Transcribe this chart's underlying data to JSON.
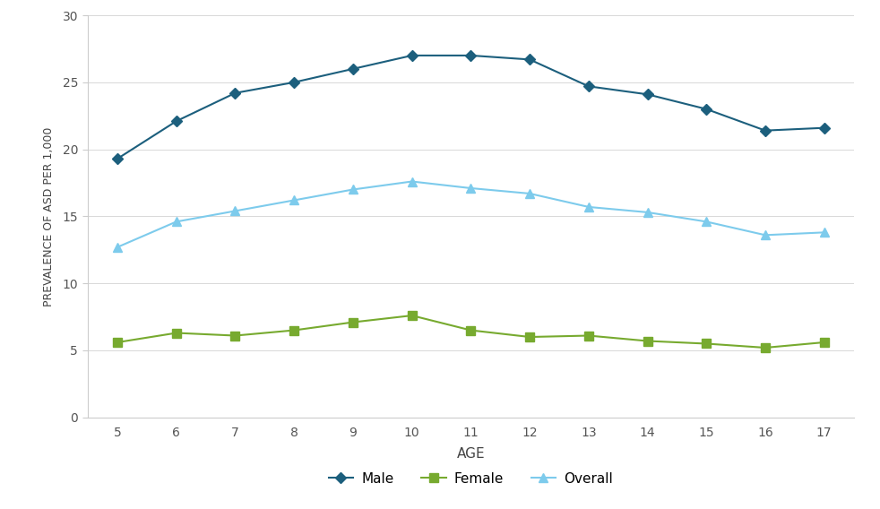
{
  "ages": [
    5,
    6,
    7,
    8,
    9,
    10,
    11,
    12,
    13,
    14,
    15,
    16,
    17
  ],
  "male": [
    19.3,
    22.1,
    24.2,
    25.0,
    26.0,
    27.0,
    27.0,
    26.7,
    24.7,
    24.1,
    23.0,
    21.4,
    21.6
  ],
  "female": [
    5.6,
    6.3,
    6.1,
    6.5,
    7.1,
    7.6,
    6.5,
    6.0,
    6.1,
    5.7,
    5.5,
    5.2,
    5.6
  ],
  "overall": [
    12.7,
    14.6,
    15.4,
    16.2,
    17.0,
    17.6,
    17.1,
    16.7,
    15.7,
    15.3,
    14.6,
    13.6,
    13.8
  ],
  "male_color": "#1c5f7d",
  "female_color": "#77aa2f",
  "overall_color": "#7dcbec",
  "xlabel": "AGE",
  "ylabel": "PREVALENCE OF ASD PER 1,000",
  "ylim": [
    0,
    30
  ],
  "yticks": [
    0,
    5,
    10,
    15,
    20,
    25,
    30
  ],
  "legend_labels": [
    "Male",
    "Female",
    "Overall"
  ],
  "background_color": "#ffffff",
  "grid_color": "#d8d8d8",
  "spine_color": "#cccccc",
  "tick_label_color": "#555555",
  "axis_label_color": "#444444"
}
